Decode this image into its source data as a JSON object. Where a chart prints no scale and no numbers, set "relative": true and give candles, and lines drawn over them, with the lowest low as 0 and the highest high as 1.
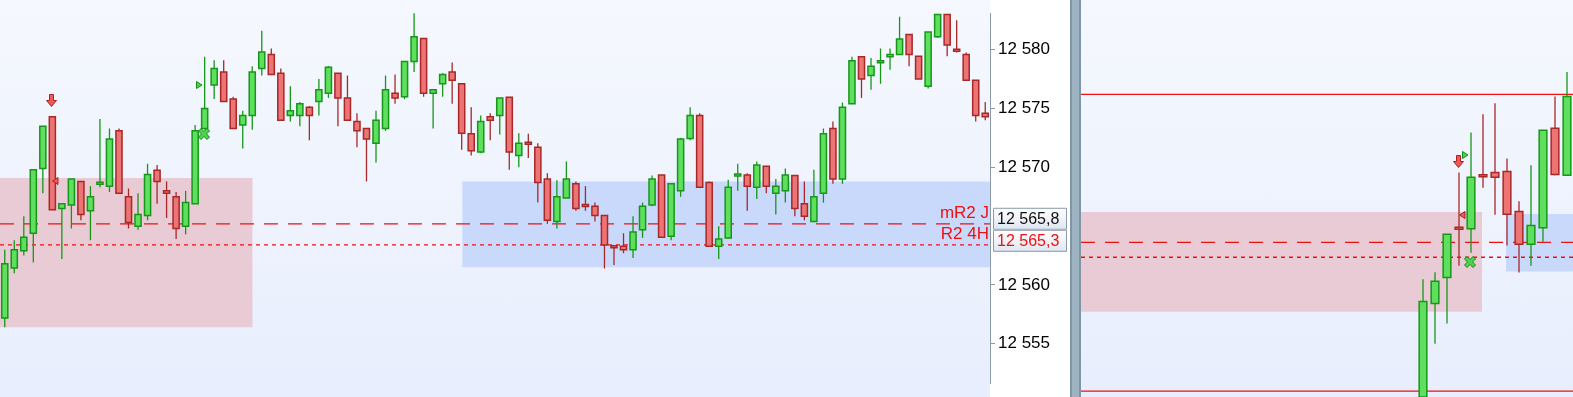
{
  "chart_data": [
    {
      "type": "candlestick",
      "tick_labels": "y",
      "legend": false,
      "categories": [
        null,
        null,
        null,
        null,
        null,
        null,
        null,
        null,
        null,
        null,
        null,
        null,
        null,
        null,
        null,
        null,
        null,
        null,
        null,
        null,
        null,
        null,
        null,
        null,
        null,
        null,
        null,
        null,
        null,
        null,
        null,
        null,
        null,
        null,
        null,
        null,
        null,
        null,
        null,
        null,
        null,
        null,
        null,
        null,
        null,
        null,
        null,
        null,
        null,
        null,
        null,
        null,
        null,
        null,
        null,
        null,
        null,
        null,
        null,
        null,
        null,
        null,
        null,
        null,
        null,
        null,
        null,
        null,
        null,
        null,
        null,
        null,
        null,
        null,
        null,
        null,
        null,
        null,
        null,
        null,
        null,
        null,
        null,
        null,
        null,
        null,
        null,
        null,
        null,
        null,
        null,
        null,
        null,
        null,
        null,
        null,
        null,
        null,
        null,
        null,
        null,
        null,
        null,
        null
      ],
      "ohlc": [
        [
          12557.2,
          12563.0,
          12556.4,
          12561.8
        ],
        [
          12561.45,
          12563.8,
          12561.0,
          12563.0
        ],
        [
          12562.9,
          12565.85,
          12562.5,
          12564.05
        ],
        [
          12564.4,
          12569.8,
          12561.9,
          12569.8
        ],
        [
          12569.9,
          12573.5,
          12567.8,
          12573.5
        ],
        [
          12574.3,
          12574.3,
          12566.4,
          12566.4
        ],
        [
          12566.5,
          12566.9,
          12562.2,
          12566.9
        ],
        [
          12566.8,
          12569.0,
          12564.8,
          12569.0
        ],
        [
          12568.8,
          12568.8,
          12565.5,
          12566.0
        ],
        [
          12566.3,
          12568.4,
          12563.8,
          12567.5
        ],
        [
          12568.6,
          12574.1,
          12568.3,
          12568.7
        ],
        [
          12568.4,
          12573.3,
          12567.9,
          12572.4
        ],
        [
          12573.1,
          12573.3,
          12567.8,
          12567.8
        ],
        [
          12567.5,
          12568.2,
          12564.8,
          12565.3
        ],
        [
          12565.0,
          12567.8,
          12564.7,
          12566.0
        ],
        [
          12565.9,
          12570.3,
          12565.5,
          12569.4
        ],
        [
          12569.75,
          12570.2,
          12566.9,
          12568.8
        ],
        [
          12568.0,
          12568.8,
          12565.7,
          12567.8
        ],
        [
          12567.5,
          12567.9,
          12563.9,
          12564.8
        ],
        [
          12565.0,
          12568.0,
          12564.3,
          12567.0
        ],
        [
          12566.9,
          12573.6,
          12566.9,
          12573.1
        ],
        [
          12573.3,
          12579.4,
          12573.2,
          12575.0
        ],
        [
          12577.0,
          12579.1,
          12575.8,
          12578.4
        ],
        [
          12578.1,
          12579.1,
          12575.6,
          12575.6
        ],
        [
          12575.8,
          12576.0,
          12573.3,
          12573.3
        ],
        [
          12573.6,
          12574.8,
          12571.6,
          12574.4
        ],
        [
          12574.4,
          12578.6,
          12573.2,
          12578.1
        ],
        [
          12578.4,
          12581.6,
          12577.8,
          12579.8
        ],
        [
          12579.6,
          12580.1,
          12577.9,
          12577.9
        ],
        [
          12578.0,
          12578.4,
          12574.0,
          12574.0
        ],
        [
          12574.4,
          12576.9,
          12573.9,
          12574.8
        ],
        [
          12574.4,
          12575.55,
          12573.5,
          12575.4
        ],
        [
          12575.1,
          12575.2,
          12572.3,
          12574.4
        ],
        [
          12575.6,
          12577.5,
          12574.4,
          12576.6
        ],
        [
          12576.3,
          12578.6,
          12575.9,
          12578.5
        ],
        [
          12578.0,
          12578.0,
          12573.5,
          12575.9
        ],
        [
          12575.9,
          12577.8,
          12574.0,
          12574.0
        ],
        [
          12573.9,
          12574.6,
          12571.7,
          12573.1
        ],
        [
          12573.3,
          12573.3,
          12568.8,
          12572.4
        ],
        [
          12572.05,
          12574.8,
          12570.4,
          12574.0
        ],
        [
          12573.3,
          12577.8,
          12573.1,
          12576.6
        ],
        [
          12576.3,
          12577.9,
          12575.4,
          12575.9
        ],
        [
          12576.0,
          12579.0,
          12575.8,
          12579.0
        ],
        [
          12579.0,
          12583.1,
          12578.1,
          12581.1
        ],
        [
          12580.96,
          12581.0,
          12576.0,
          12576.3
        ],
        [
          12576.3,
          12576.6,
          12573.3,
          12576.6
        ],
        [
          12577.1,
          12578.0,
          12576.0,
          12577.9
        ],
        [
          12578.1,
          12578.9,
          12575.4,
          12577.4
        ],
        [
          12577.1,
          12577.1,
          12571.5,
          12572.9
        ],
        [
          12572.85,
          12575.1,
          12571.0,
          12571.4
        ],
        [
          12571.3,
          12574.4,
          12571.2,
          12573.9
        ],
        [
          12574.3,
          12574.6,
          12572.3,
          12574.0
        ],
        [
          12574.4,
          12575.9,
          12572.8,
          12575.9
        ],
        [
          12575.95,
          12575.95,
          12569.8,
          12571.3
        ],
        [
          12571.0,
          12572.9,
          12570.0,
          12572.05
        ],
        [
          12572.1,
          12572.85,
          12570.8,
          12572.0
        ],
        [
          12571.7,
          12572.05,
          12567.0,
          12568.7
        ],
        [
          12569.0,
          12569.5,
          12565.2,
          12565.5
        ],
        [
          12565.4,
          12568.9,
          12564.8,
          12567.5
        ],
        [
          12567.4,
          12570.5,
          12567.4,
          12569.0
        ],
        [
          12568.6,
          12568.8,
          12566.3,
          12566.5
        ],
        [
          12566.8,
          12568.4,
          12566.3,
          12566.7
        ],
        [
          12566.7,
          12567.0,
          12565.4,
          12565.9
        ],
        [
          12565.9,
          12565.9,
          12561.4,
          12563.4
        ],
        [
          12563.3,
          12563.3,
          12561.7,
          12563.2
        ],
        [
          12563.3,
          12564.4,
          12562.7,
          12563.0
        ],
        [
          12563.0,
          12565.85,
          12562.3,
          12564.5
        ],
        [
          12564.7,
          12567.0,
          12564.0,
          12566.7
        ],
        [
          12566.8,
          12569.3,
          12566.7,
          12569.0
        ],
        [
          12569.35,
          12569.35,
          12564.05,
          12564.05
        ],
        [
          12564.15,
          12568.6,
          12563.8,
          12568.6
        ],
        [
          12568.0,
          12572.5,
          12567.5,
          12572.4
        ],
        [
          12572.45,
          12575.1,
          12572.3,
          12574.4
        ],
        [
          12574.4,
          12574.6,
          12568.3,
          12568.3
        ],
        [
          12568.7,
          12568.8,
          12563.3,
          12563.3
        ],
        [
          12563.3,
          12565.0,
          12562.2,
          12563.9
        ],
        [
          12564.0,
          12568.95,
          12563.95,
          12568.3
        ],
        [
          12569.3,
          12570.3,
          12568.0,
          12569.4
        ],
        [
          12569.35,
          12569.5,
          12566.3,
          12568.4
        ],
        [
          12568.3,
          12570.5,
          12567.3,
          12570.2
        ],
        [
          12570.1,
          12570.1,
          12567.8,
          12568.4
        ],
        [
          12567.8,
          12569.0,
          12566.0,
          12568.4
        ],
        [
          12568.0,
          12569.9,
          12567.0,
          12569.35
        ],
        [
          12569.3,
          12569.35,
          12565.85,
          12566.5
        ],
        [
          12566.9,
          12568.8,
          12565.5,
          12565.85
        ],
        [
          12565.4,
          12569.8,
          12565.4,
          12567.5
        ],
        [
          12567.8,
          12573.3,
          12567.0,
          12572.85
        ],
        [
          12573.3,
          12573.9,
          12568.6,
          12569.0
        ],
        [
          12569.0,
          12575.5,
          12568.6,
          12575.1
        ],
        [
          12575.4,
          12579.4,
          12575.4,
          12579.05
        ],
        [
          12579.4,
          12579.45,
          12575.9,
          12577.5
        ],
        [
          12577.8,
          12579.3,
          12576.6,
          12578.6
        ],
        [
          12578.9,
          12580.1,
          12577.1,
          12579.05
        ],
        [
          12579.4,
          12580.1,
          12578.3,
          12579.6
        ],
        [
          12579.6,
          12582.8,
          12579.6,
          12580.9
        ],
        [
          12581.3,
          12581.3,
          12578.6,
          12579.6
        ],
        [
          12579.45,
          12579.45,
          12577.5,
          12577.5
        ],
        [
          12576.9,
          12581.5,
          12576.7,
          12581.5
        ],
        [
          12581.1,
          12583.0,
          12581.0,
          12583.0
        ],
        [
          12583.0,
          12583.0,
          12579.45,
          12580.4
        ],
        [
          12580.0,
          12582.5,
          12579.75,
          12579.9
        ],
        [
          12579.6,
          12579.75,
          12577.4,
          12577.4
        ],
        [
          12577.4,
          12577.4,
          12573.9,
          12574.4
        ],
        [
          12574.6,
          12575.55,
          12574.0,
          12574.3
        ]
      ],
      "ylim": [
        12551.6,
        12583.1
      ],
      "yticks": [
        {
          "value": 12555,
          "label": "12 555"
        },
        {
          "value": 12560,
          "label": "12 560"
        },
        {
          "value": 12570,
          "label": "12 570"
        },
        {
          "value": 12575,
          "label": "12 575"
        },
        {
          "value": 12580,
          "label": "12 580"
        }
      ],
      "bands": [
        {
          "axis": "y",
          "from": 12556.4,
          "to": 12569.1,
          "color": "#e8cbd4"
        },
        {
          "axis": "y",
          "from": 12561.5,
          "to": 12568.8,
          "color": "#c8d9fc"
        }
      ],
      "ref_lines": [
        {
          "axis": "y",
          "value": 12565.2,
          "label": "mR2 J",
          "color": "#ee1111",
          "line_style": "dashed"
        },
        {
          "axis": "y",
          "value": 12563.4,
          "label": "R2 4H",
          "color": "#ee1111",
          "line_style": "dotted"
        }
      ],
      "annotations": [
        "12 565,8",
        "12 565,3"
      ]
    },
    {
      "type": "candlestick",
      "relative": true,
      "tick_labels": false,
      "legend": false,
      "categories": [
        null,
        null,
        null,
        null,
        null,
        null,
        null,
        null,
        null,
        null,
        null,
        null,
        null,
        null,
        null,
        null,
        null,
        null,
        null,
        null,
        null,
        null,
        null,
        null,
        null,
        null,
        null,
        null,
        null,
        null,
        null,
        null,
        null,
        null,
        null,
        null,
        null,
        null,
        null,
        null,
        null
      ],
      "ohlc": [
        null,
        null,
        null,
        null,
        null,
        null,
        null,
        null,
        null,
        null,
        null,
        null,
        null,
        null,
        null,
        null,
        null,
        null,
        null,
        null,
        null,
        null,
        null,
        null,
        null,
        null,
        null,
        null,
        [
          0,
          0.362,
          0,
          0.294
        ],
        [
          0.288,
          0.384,
          0.164,
          0.356
        ],
        [
          0.368,
          0.501,
          0.226,
          0.501
        ],
        [
          0.522,
          0.691,
          0.404,
          0.516
        ],
        [
          0.518,
          0.814,
          0.444,
          0.676
        ],
        [
          0.682,
          0.87,
          0.644,
          0.679
        ],
        [
          0.691,
          0.904,
          0.561,
          0.676
        ],
        [
          0.694,
          0.734,
          0.466,
          0.562
        ],
        [
          0.571,
          0.602,
          0.383,
          0.47
        ],
        [
          0.47,
          0.713,
          0.404,
          0.528
        ],
        [
          0.521,
          0.821,
          0.478,
          0.821
        ],
        [
          0.827,
          0.925,
          0.682,
          0.685
        ],
        [
          0.682,
          1,
          0.682,
          0.925
        ]
      ],
      "bands": [
        {
          "axis": "y",
          "from": 0.262,
          "to": 0.569,
          "color": "#e8cbd4"
        },
        {
          "axis": "y",
          "from": 0.386,
          "to": 0.563,
          "color": "#c8d9fc"
        }
      ],
      "ref_lines": [
        {
          "axis": "y",
          "value": 0.931,
          "color": "#ee1111",
          "line_style": "solid"
        },
        {
          "axis": "y",
          "value": 0.018,
          "color": "#ee1111",
          "line_style": "solid"
        },
        {
          "axis": "y",
          "value": 0.476,
          "color": "#ee1111",
          "line_style": "dashed"
        },
        {
          "axis": "y",
          "value": 0.43,
          "color": "#ee1111",
          "line_style": "dotted"
        }
      ]
    }
  ]
}
